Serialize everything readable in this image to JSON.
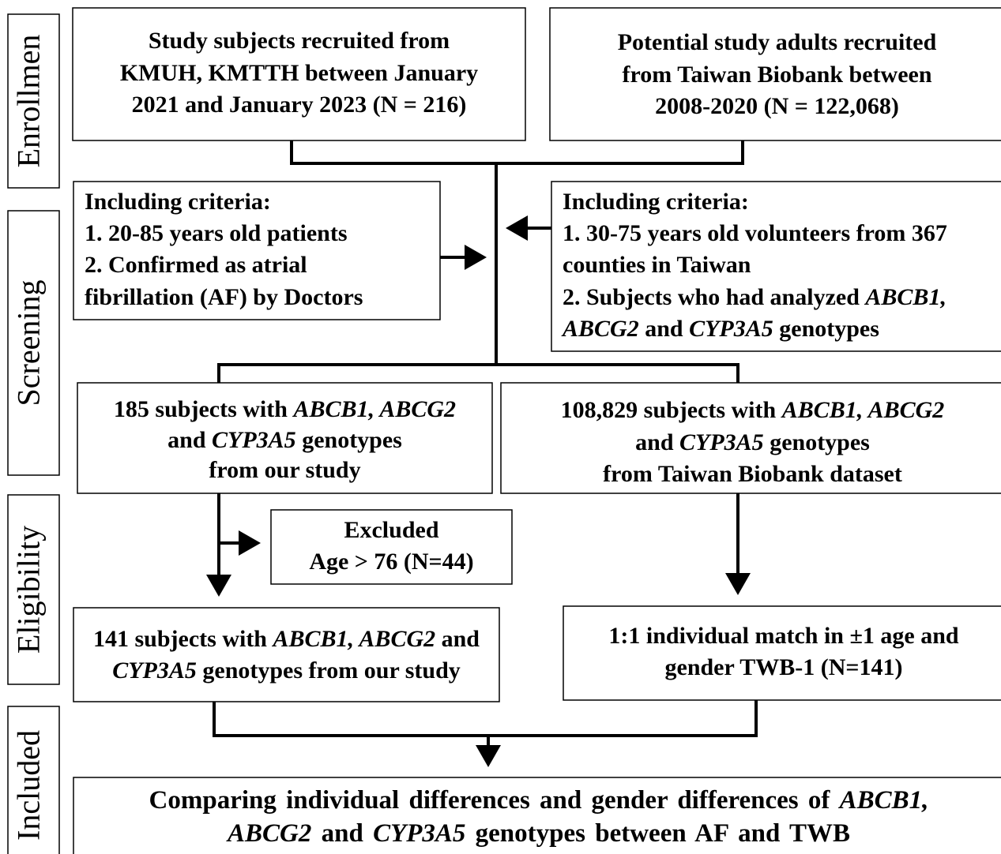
{
  "stages": [
    "Enrollmen",
    "Screening",
    "Eligibility",
    "Included"
  ],
  "boxes": [
    {
      "lines": [
        [
          "Study subjects recruited from"
        ],
        [
          "KMUH, KMTTH between January"
        ],
        [
          "2021 and January 2023 (N = 216)"
        ]
      ]
    },
    {
      "lines": [
        [
          "Potential study adults recruited"
        ],
        [
          "from Taiwan Biobank between"
        ],
        [
          "2008-2020 (N = 122,068)"
        ]
      ]
    },
    {
      "lines": [
        [
          "Including criteria:"
        ],
        [
          "1. 20-85 years old patients"
        ],
        [
          "2. Confirmed as atrial"
        ],
        [
          "fibrillation (AF) by Doctors"
        ]
      ]
    },
    {
      "lines": [
        [
          "Including criteria:"
        ],
        [
          "1. 30-75 years old volunteers from 367"
        ],
        [
          "counties in Taiwan"
        ],
        [
          "2. Subjects who had analyzed ",
          {
            "text": "ABCB1,",
            "style": "italic"
          }
        ],
        [
          {
            "text": "ABCG2",
            "style": "italic"
          },
          " and ",
          {
            "text": "CYP3A5",
            "style": "italic"
          },
          " genotypes"
        ]
      ]
    },
    {
      "lines": [
        [
          "185 subjects with ",
          {
            "text": "ABCB1, ABCG2",
            "style": "italic"
          }
        ],
        [
          "and ",
          {
            "text": "CYP3A5",
            "style": "italic"
          },
          " genotypes"
        ],
        [
          "from our study"
        ]
      ]
    },
    {
      "lines": [
        [
          "108,829 subjects with ",
          {
            "text": "ABCB1, ABCG2",
            "style": "italic"
          }
        ],
        [
          "and ",
          {
            "text": "CYP3A5",
            "style": "italic"
          },
          " genotypes"
        ],
        [
          "from Taiwan Biobank dataset"
        ]
      ]
    },
    {
      "lines": [
        [
          "Excluded"
        ],
        [
          "Age > 76 (N=44)"
        ]
      ]
    },
    {
      "lines": [
        [
          "141 subjects with ",
          {
            "text": "ABCB1, ABCG2",
            "style": "italic"
          },
          " and"
        ],
        [
          {
            "text": "CYP3A5",
            "style": "italic"
          },
          " genotypes from our study"
        ]
      ]
    },
    {
      "lines": [
        [
          "1:1 individual match in ±1 age and"
        ],
        [
          "gender TWB-1 (N=141)"
        ]
      ]
    },
    {
      "lines": [
        [
          "Comparing individual differences and gender differences of ",
          {
            "text": "ABCB1,",
            "style": "italic"
          }
        ],
        [
          {
            "text": "ABCG2",
            "style": "italic"
          },
          " and ",
          {
            "text": "CYP3A5",
            "style": "italic"
          },
          " genotypes between AF and TWB"
        ]
      ]
    }
  ]
}
